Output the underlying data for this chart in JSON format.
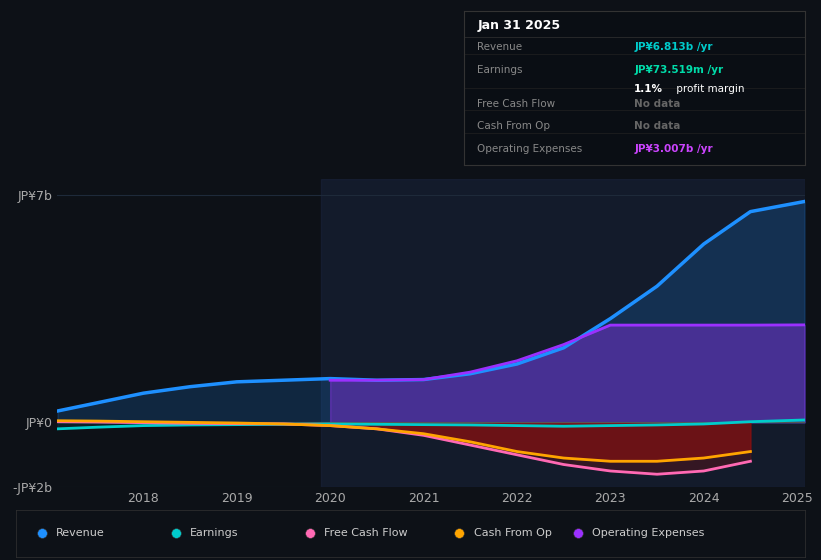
{
  "bg_color": "#0d1117",
  "plot_bg_color": "#0d1117",
  "grid_color": "#1e2a3a",
  "years": [
    2017.08,
    2017.5,
    2018.0,
    2018.5,
    2019.0,
    2019.5,
    2020.0,
    2020.5,
    2021.0,
    2021.5,
    2022.0,
    2022.5,
    2023.0,
    2023.5,
    2024.0,
    2024.5,
    2025.08
  ],
  "revenue": [
    0.35,
    0.6,
    0.9,
    1.1,
    1.25,
    1.3,
    1.35,
    1.3,
    1.32,
    1.5,
    1.8,
    2.3,
    3.2,
    4.2,
    5.5,
    6.5,
    6.813
  ],
  "earnings": [
    -0.2,
    -0.15,
    -0.1,
    -0.08,
    -0.07,
    -0.06,
    -0.05,
    -0.06,
    -0.07,
    -0.08,
    -0.1,
    -0.12,
    -0.1,
    -0.08,
    -0.05,
    0.02,
    0.0735
  ],
  "free_cash": [
    0.02,
    0.01,
    -0.01,
    -0.03,
    -0.04,
    -0.05,
    -0.1,
    -0.2,
    -0.4,
    -0.7,
    -1.0,
    -1.3,
    -1.5,
    -1.6,
    -1.5,
    -1.2,
    null
  ],
  "cash_op": [
    0.05,
    0.04,
    0.02,
    0.0,
    -0.02,
    -0.05,
    -0.1,
    -0.2,
    -0.35,
    -0.6,
    -0.9,
    -1.1,
    -1.2,
    -1.2,
    -1.1,
    -0.9,
    null
  ],
  "op_expenses": [
    null,
    null,
    null,
    null,
    null,
    null,
    1.3,
    1.3,
    1.32,
    1.55,
    1.9,
    2.4,
    3.0,
    3.0,
    3.0,
    3.0,
    3.007
  ],
  "ylim": [
    -2.0,
    7.5
  ],
  "ytick_vals": [
    -2.0,
    0.0,
    7.0
  ],
  "ytick_labels": [
    "-JP¥2b",
    "JP¥0",
    "JP¥7b"
  ],
  "xtick_years": [
    2018,
    2019,
    2020,
    2021,
    2022,
    2023,
    2024,
    2025
  ],
  "colors": {
    "revenue": "#1e90ff",
    "earnings": "#00cccc",
    "free_cash": "#ff69b4",
    "cash_op": "#ffa500",
    "op_expenses": "#9b30ff"
  },
  "info_box": {
    "date": "Jan 31 2025",
    "rows": [
      {
        "label": "Revenue",
        "value": "JP¥6.813b /yr",
        "value_color": "#00cccc",
        "sub": null
      },
      {
        "label": "Earnings",
        "value": "JP¥73.519m /yr",
        "value_color": "#00ddaa",
        "sub": "1.1% profit margin"
      },
      {
        "label": "Free Cash Flow",
        "value": "No data",
        "value_color": "#666666",
        "sub": null
      },
      {
        "label": "Cash From Op",
        "value": "No data",
        "value_color": "#666666",
        "sub": null
      },
      {
        "label": "Operating Expenses",
        "value": "JP¥3.007b /yr",
        "value_color": "#cc44ff",
        "sub": null
      }
    ]
  },
  "legend_items": [
    "Revenue",
    "Earnings",
    "Free Cash Flow",
    "Cash From Op",
    "Operating Expenses"
  ],
  "legend_colors": [
    "#1e90ff",
    "#00cccc",
    "#ff69b4",
    "#ffa500",
    "#9b30ff"
  ]
}
